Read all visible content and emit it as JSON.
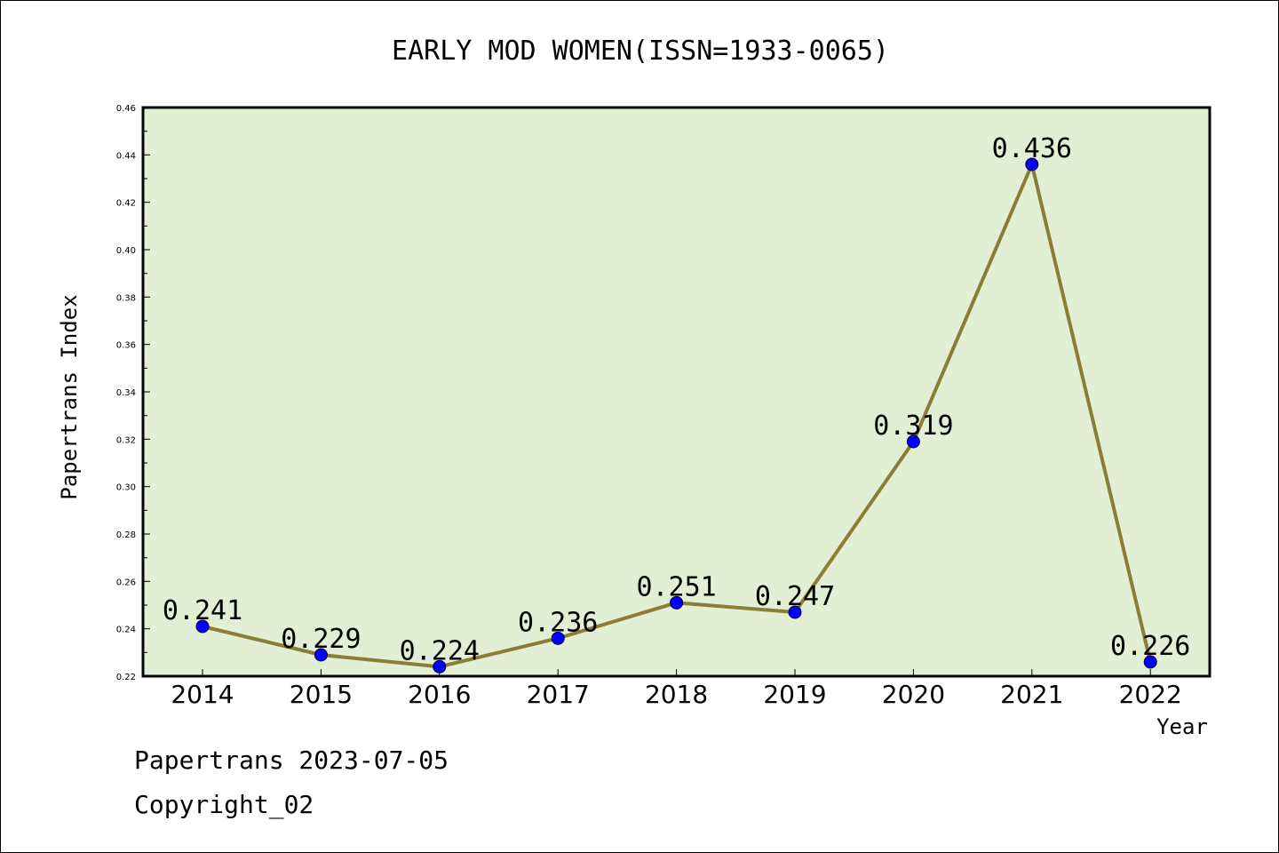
{
  "footer": {
    "date_line": "Papertrans 2023-07-05",
    "copyright": "Copyright_02"
  },
  "colors": {
    "plot_background": "#e2efd5",
    "line": "#8b7d35",
    "marker": "#0000ff"
  },
  "chart_data": {
    "type": "line",
    "title": "EARLY MOD WOMEN(ISSN=1933-0065)",
    "xlabel": "Year",
    "ylabel": "Papertrans Index",
    "x": [
      "2014",
      "2015",
      "2016",
      "2017",
      "2018",
      "2019",
      "2020",
      "2021",
      "2022"
    ],
    "series": [
      {
        "values": [
          0.241,
          0.229,
          0.224,
          0.236,
          0.251,
          0.247,
          0.319,
          0.436,
          0.226
        ],
        "labels": [
          "0.241",
          "0.229",
          "0.224",
          "0.236",
          "0.251",
          "0.247",
          "0.319",
          "0.436",
          "0.226"
        ]
      }
    ],
    "ylim": [
      0.22,
      0.46
    ],
    "yticks": [
      "0.22",
      "0.24",
      "0.26",
      "0.28",
      "0.30",
      "0.32",
      "0.34",
      "0.36",
      "0.38",
      "0.40",
      "0.42",
      "0.44",
      "0.46"
    ],
    "grid": false,
    "legend": "none"
  }
}
